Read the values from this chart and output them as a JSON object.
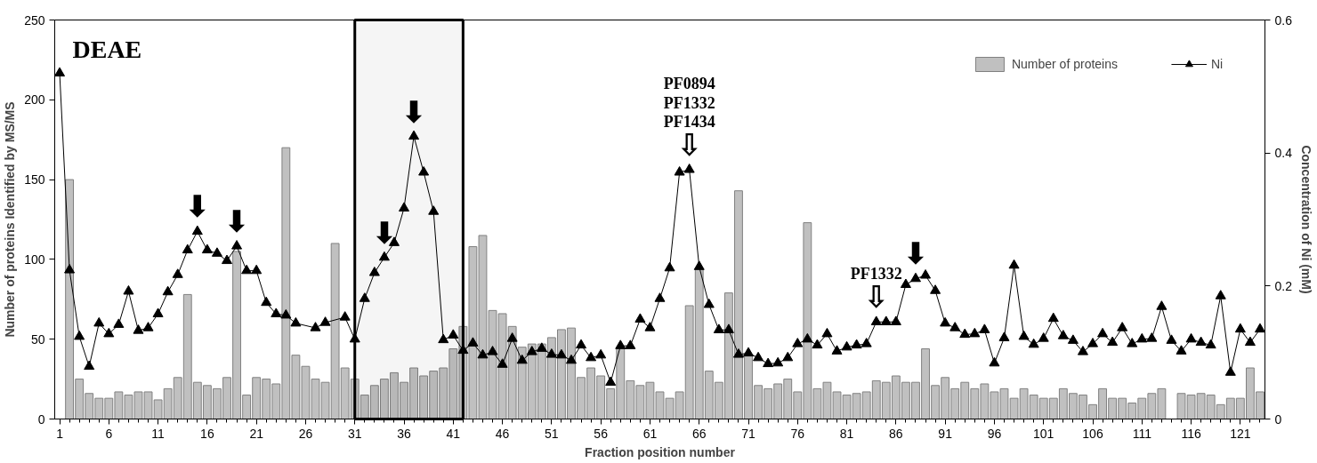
{
  "chart_data": {
    "type": "bar",
    "xlabel": "Fraction position number",
    "ylabel": "Number of proteins Identified by MS/MS",
    "y2label": "Concentration of Ni (mM)",
    "x": [
      1,
      2,
      3,
      4,
      5,
      6,
      7,
      8,
      9,
      10,
      11,
      12,
      13,
      14,
      15,
      16,
      17,
      18,
      19,
      20,
      21,
      22,
      23,
      24,
      25,
      26,
      27,
      28,
      29,
      30,
      31,
      32,
      33,
      34,
      35,
      36,
      37,
      38,
      39,
      40,
      41,
      42,
      43,
      44,
      45,
      46,
      47,
      48,
      49,
      50,
      51,
      52,
      53,
      54,
      55,
      56,
      57,
      58,
      59,
      60,
      61,
      62,
      63,
      64,
      65,
      66,
      67,
      68,
      69,
      70,
      71,
      72,
      73,
      74,
      75,
      76,
      77,
      78,
      79,
      80,
      81,
      82,
      83,
      84,
      85,
      86,
      87,
      88,
      89,
      90,
      91,
      92,
      93,
      94,
      95,
      96,
      97,
      98,
      99,
      100,
      101,
      102,
      103,
      104,
      105,
      106,
      107,
      108,
      109,
      110,
      111,
      112,
      113,
      114,
      115,
      116,
      117,
      118,
      119,
      120,
      121,
      122,
      123
    ],
    "series": [
      {
        "name": "Number of proteins",
        "color": "#c0c0c0",
        "values": [
          null,
          150,
          25,
          16,
          13,
          13,
          17,
          15,
          17,
          17,
          12,
          19,
          26,
          78,
          23,
          21,
          19,
          26,
          105,
          15,
          26,
          25,
          22,
          170,
          40,
          33,
          25,
          23,
          110,
          32,
          25,
          15,
          21,
          25,
          29,
          23,
          32,
          27,
          30,
          32,
          44,
          58,
          108,
          115,
          68,
          66,
          58,
          45,
          47,
          47,
          51,
          56,
          57,
          26,
          32,
          27,
          19,
          45,
          24,
          21,
          23,
          17,
          13,
          17,
          71,
          94,
          30,
          23,
          79,
          143,
          40,
          21,
          19,
          22,
          25,
          17,
          123,
          19,
          23,
          17,
          15,
          16,
          17,
          24,
          23,
          27,
          23,
          23,
          44,
          21,
          26,
          19,
          23,
          19,
          22,
          17,
          19,
          13,
          19,
          15,
          13,
          13,
          19,
          16,
          15,
          9,
          19,
          13,
          13,
          10,
          13,
          16,
          19,
          null,
          16,
          15,
          16,
          15,
          9,
          13,
          13,
          32,
          17
        ]
      },
      {
        "name": "Ni",
        "type": "line",
        "axis": "y2",
        "color": "#000000",
        "marker": "triangle",
        "values": [
          0.52,
          0.224,
          0.124,
          0.079,
          0.144,
          0.128,
          0.142,
          0.192,
          0.133,
          0.137,
          0.158,
          0.191,
          0.217,
          0.254,
          0.282,
          0.254,
          0.249,
          0.238,
          0.26,
          0.223,
          0.223,
          0.175,
          0.158,
          0.156,
          0.144,
          null,
          0.137,
          0.145,
          null,
          0.153,
          0.12,
          0.181,
          0.22,
          0.243,
          0.265,
          0.317,
          0.425,
          0.371,
          0.312,
          0.119,
          0.126,
          0.103,
          0.114,
          0.096,
          0.101,
          0.082,
          0.121,
          0.088,
          0.101,
          0.106,
          0.097,
          0.096,
          0.088,
          0.111,
          0.092,
          0.096,
          0.055,
          0.11,
          0.11,
          0.15,
          0.137,
          0.181,
          0.227,
          0.371,
          0.375,
          0.229,
          0.172,
          0.134,
          0.134,
          0.097,
          0.099,
          0.092,
          0.083,
          0.084,
          0.092,
          0.113,
          0.12,
          0.111,
          0.128,
          0.102,
          0.108,
          0.111,
          0.113,
          0.146,
          0.146,
          0.146,
          0.202,
          0.211,
          0.216,
          0.193,
          0.144,
          0.137,
          0.127,
          0.128,
          0.134,
          0.084,
          0.122,
          0.231,
          0.124,
          0.112,
          0.121,
          0.151,
          0.125,
          0.118,
          0.101,
          0.113,
          0.128,
          0.115,
          0.137,
          0.113,
          0.12,
          0.121,
          0.169,
          0.118,
          0.102,
          0.12,
          0.115,
          0.111,
          0.185,
          0.07,
          0.135,
          0.115,
          0.135
        ]
      }
    ],
    "xlim": [
      0.5,
      123.5
    ],
    "xticks": [
      1,
      6,
      11,
      16,
      21,
      26,
      31,
      36,
      41,
      46,
      51,
      56,
      61,
      66,
      71,
      76,
      81,
      86,
      91,
      96,
      101,
      106,
      111,
      116,
      121
    ],
    "ylim": [
      0,
      250
    ],
    "yticks": [
      0,
      50,
      100,
      150,
      200,
      250
    ],
    "y2lim": [
      0,
      0.6
    ],
    "y2ticks": [
      0,
      0.2,
      0.4,
      0.6
    ],
    "bands": [
      {
        "axis": "x",
        "from": 31,
        "to": 42,
        "color": "#000000"
      }
    ],
    "annotations": [
      "DEAE",
      {
        "text": "⬇",
        "x": 15,
        "y": 117.5
      },
      {
        "text": "⬇",
        "x": 19,
        "y": 108.3
      },
      {
        "text": "⬇",
        "x": 34,
        "y": 101.3
      },
      {
        "text": "⬇",
        "x": 37,
        "y": 177
      },
      {
        "text": "⇩",
        "x": 65,
        "y": 156
      },
      {
        "text": "PF0894\nPF1332\nPF1434",
        "x": 65,
        "y": 156
      },
      {
        "text": "⇩",
        "x": 84,
        "y": 61
      },
      {
        "text": "PF1332",
        "x": 84,
        "y": 61
      },
      {
        "text": "⬇",
        "x": 88,
        "y": 88
      }
    ],
    "legend": "top right",
    "grid": false
  }
}
